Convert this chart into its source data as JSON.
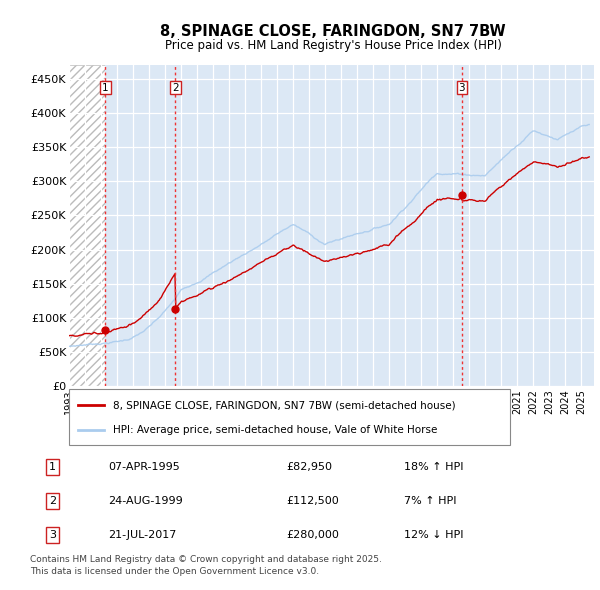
{
  "title": "8, SPINAGE CLOSE, FARINGDON, SN7 7BW",
  "subtitle": "Price paid vs. HM Land Registry's House Price Index (HPI)",
  "ylim": [
    0,
    470000
  ],
  "yticks": [
    0,
    50000,
    100000,
    150000,
    200000,
    250000,
    300000,
    350000,
    400000,
    450000
  ],
  "ytick_labels": [
    "£0",
    "£50K",
    "£100K",
    "£150K",
    "£200K",
    "£250K",
    "£300K",
    "£350K",
    "£400K",
    "£450K"
  ],
  "xlim_start": 1993.0,
  "xlim_end": 2025.8,
  "xticks": [
    1993,
    1994,
    1995,
    1996,
    1997,
    1998,
    1999,
    2000,
    2001,
    2002,
    2003,
    2004,
    2005,
    2006,
    2007,
    2008,
    2009,
    2010,
    2011,
    2012,
    2013,
    2014,
    2015,
    2016,
    2017,
    2018,
    2019,
    2020,
    2021,
    2022,
    2023,
    2024,
    2025
  ],
  "transactions": [
    {
      "date_num": 1995.27,
      "price": 82950,
      "label": "1"
    },
    {
      "date_num": 1999.65,
      "price": 112500,
      "label": "2"
    },
    {
      "date_num": 2017.55,
      "price": 280000,
      "label": "3"
    }
  ],
  "vline_color": "#EE3333",
  "hpi_line_color": "#AACCEE",
  "price_line_color": "#CC0000",
  "marker_color": "#CC0000",
  "legend_entries": [
    "8, SPINAGE CLOSE, FARINGDON, SN7 7BW (semi-detached house)",
    "HPI: Average price, semi-detached house, Vale of White Horse"
  ],
  "table_entries": [
    {
      "num": "1",
      "date": "07-APR-1995",
      "price": "£82,950",
      "hpi": "18% ↑ HPI"
    },
    {
      "num": "2",
      "date": "24-AUG-1999",
      "price": "£112,500",
      "hpi": "7% ↑ HPI"
    },
    {
      "num": "3",
      "date": "21-JUL-2017",
      "price": "£280,000",
      "hpi": "12% ↓ HPI"
    }
  ],
  "footer": "Contains HM Land Registry data © Crown copyright and database right 2025.\nThis data is licensed under the Open Government Licence v3.0.",
  "bg_right_color": "#DCE8F5",
  "hatch_color": "#BBBBBB"
}
